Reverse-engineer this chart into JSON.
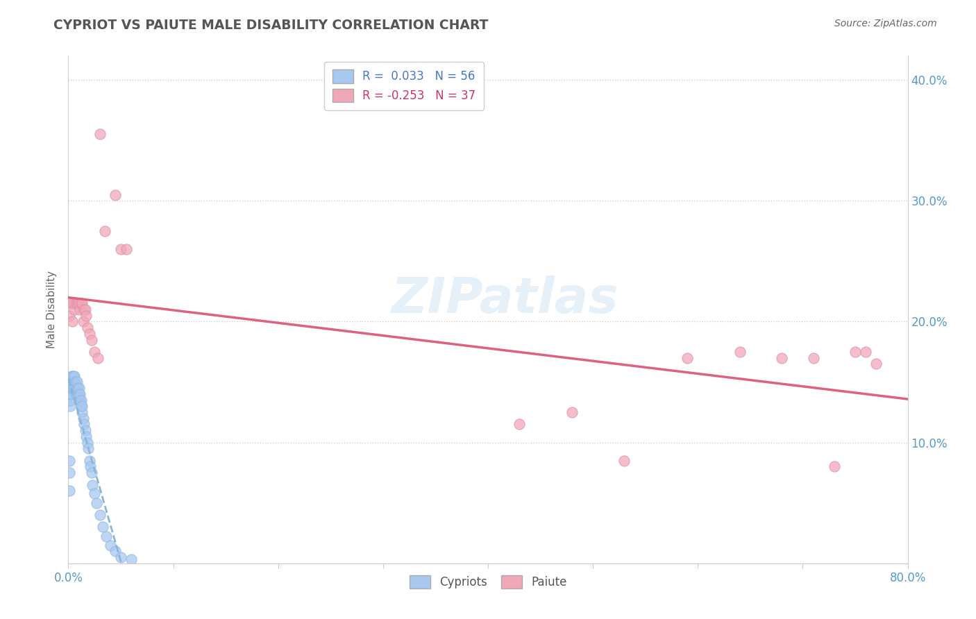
{
  "title": "CYPRIOT VS PAIUTE MALE DISABILITY CORRELATION CHART",
  "source": "Source: ZipAtlas.com",
  "ylabel": "Male Disability",
  "xlim": [
    0.0,
    0.8
  ],
  "ylim": [
    0.0,
    0.42
  ],
  "cypriot_R": 0.033,
  "cypriot_N": 56,
  "paiute_R": -0.253,
  "paiute_N": 37,
  "cypriot_color": "#a8c8f0",
  "paiute_color": "#f0a8b8",
  "cypriot_line_color": "#8ab4d8",
  "paiute_line_color": "#e06080",
  "watermark": "ZIPatlas",
  "cypriot_x": [
    0.001,
    0.001,
    0.001,
    0.002,
    0.002,
    0.002,
    0.002,
    0.003,
    0.003,
    0.003,
    0.003,
    0.004,
    0.004,
    0.004,
    0.005,
    0.005,
    0.005,
    0.006,
    0.006,
    0.006,
    0.007,
    0.007,
    0.007,
    0.008,
    0.008,
    0.008,
    0.009,
    0.009,
    0.01,
    0.01,
    0.01,
    0.011,
    0.011,
    0.012,
    0.012,
    0.013,
    0.013,
    0.014,
    0.015,
    0.016,
    0.017,
    0.018,
    0.019,
    0.02,
    0.021,
    0.022,
    0.023,
    0.025,
    0.027,
    0.03,
    0.033,
    0.036,
    0.04,
    0.045,
    0.05,
    0.06
  ],
  "cypriot_y": [
    0.075,
    0.085,
    0.06,
    0.13,
    0.135,
    0.14,
    0.145,
    0.14,
    0.145,
    0.15,
    0.155,
    0.145,
    0.15,
    0.155,
    0.145,
    0.15,
    0.155,
    0.145,
    0.15,
    0.155,
    0.14,
    0.145,
    0.15,
    0.14,
    0.145,
    0.15,
    0.14,
    0.145,
    0.135,
    0.14,
    0.145,
    0.135,
    0.14,
    0.13,
    0.135,
    0.125,
    0.13,
    0.12,
    0.115,
    0.11,
    0.105,
    0.1,
    0.095,
    0.085,
    0.08,
    0.075,
    0.065,
    0.058,
    0.05,
    0.04,
    0.03,
    0.022,
    0.015,
    0.01,
    0.005,
    0.003
  ],
  "paiute_x": [
    0.001,
    0.003,
    0.004,
    0.005,
    0.006,
    0.007,
    0.008,
    0.009,
    0.01,
    0.011,
    0.012,
    0.013,
    0.014,
    0.015,
    0.016,
    0.017,
    0.018,
    0.02,
    0.022,
    0.025,
    0.028,
    0.03,
    0.035,
    0.045,
    0.05,
    0.055,
    0.43,
    0.48,
    0.53,
    0.59,
    0.64,
    0.68,
    0.71,
    0.73,
    0.75,
    0.76,
    0.77
  ],
  "paiute_y": [
    0.205,
    0.215,
    0.2,
    0.215,
    0.21,
    0.215,
    0.215,
    0.215,
    0.215,
    0.21,
    0.215,
    0.215,
    0.2,
    0.21,
    0.21,
    0.205,
    0.195,
    0.19,
    0.185,
    0.175,
    0.17,
    0.355,
    0.275,
    0.305,
    0.26,
    0.26,
    0.115,
    0.125,
    0.085,
    0.17,
    0.175,
    0.17,
    0.17,
    0.08,
    0.175,
    0.175,
    0.165
  ]
}
